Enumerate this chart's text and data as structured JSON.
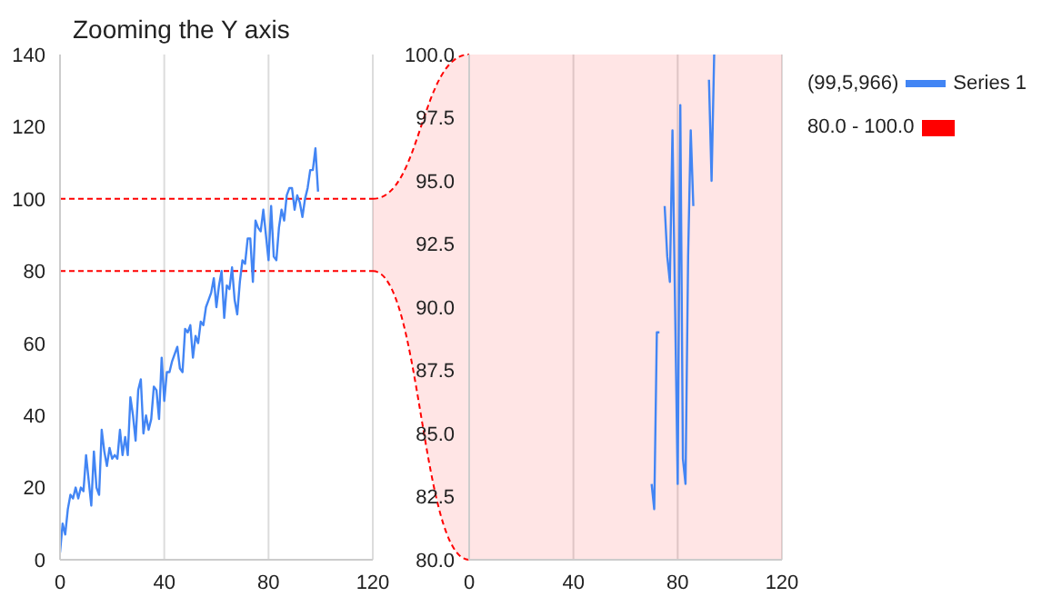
{
  "chart_data": [
    {
      "type": "line",
      "title": "Zooming the Y axis",
      "x": [
        0,
        1,
        2,
        3,
        4,
        5,
        6,
        7,
        8,
        9,
        10,
        11,
        12,
        13,
        14,
        15,
        16,
        17,
        18,
        19,
        20,
        21,
        22,
        23,
        24,
        25,
        26,
        27,
        28,
        29,
        30,
        31,
        32,
        33,
        34,
        35,
        36,
        37,
        38,
        39,
        40,
        41,
        42,
        43,
        44,
        45,
        46,
        47,
        48,
        49,
        50,
        51,
        52,
        53,
        54,
        55,
        56,
        57,
        58,
        59,
        60,
        61,
        62,
        63,
        64,
        65,
        66,
        67,
        68,
        69,
        70,
        71,
        72,
        73,
        74,
        75,
        76,
        77,
        78,
        79,
        80,
        81,
        82,
        83,
        84,
        85,
        86,
        87,
        88,
        89,
        90,
        91,
        92,
        93,
        94,
        95,
        96,
        97,
        98,
        99
      ],
      "series": [
        {
          "color": "#4285f4",
          "values": [
            2,
            10,
            7,
            14,
            18,
            17,
            20,
            17,
            20,
            19,
            29,
            22,
            15,
            30,
            20,
            18,
            36,
            30,
            26,
            31,
            28,
            29,
            28,
            36,
            29,
            34,
            29,
            45,
            40,
            33,
            47,
            50,
            35,
            40,
            36,
            39,
            48,
            47,
            39,
            56,
            44,
            52,
            52,
            55,
            57,
            59,
            53,
            52,
            64,
            63,
            65,
            56,
            62,
            60,
            66,
            65,
            70,
            72,
            74,
            78,
            70,
            76,
            80,
            67,
            76,
            75,
            81,
            72,
            68,
            77,
            83,
            82,
            89,
            89,
            77,
            94,
            92,
            91,
            97,
            90,
            83,
            98,
            84,
            83,
            92,
            97,
            94,
            101,
            103,
            103,
            97,
            101,
            99,
            95,
            100,
            103,
            108,
            108,
            114,
            102
          ]
        }
      ],
      "xlim": [
        0,
        120
      ],
      "xticks": [
        0,
        40,
        80,
        120
      ],
      "ylim": [
        0,
        140
      ],
      "yticks": [
        0,
        20,
        40,
        60,
        80,
        100,
        120,
        140
      ],
      "grid": true,
      "ref_lines": [
        {
          "axis": "y",
          "value": 80,
          "color": "#ff0000",
          "line_style": "dashed"
        },
        {
          "axis": "y",
          "value": 100,
          "color": "#ff0000",
          "line_style": "dashed"
        }
      ]
    },
    {
      "type": "line",
      "series": [
        {
          "name": "Series 1",
          "color": "#4285f4",
          "x": [
            70,
            71,
            72,
            73,
            74,
            75,
            76,
            77,
            78,
            79,
            80,
            81,
            82,
            83,
            84,
            85,
            86,
            87,
            92,
            93,
            94
          ],
          "values": [
            83,
            82,
            89,
            89,
            null,
            94,
            92,
            91,
            97,
            90,
            83,
            98,
            84,
            83,
            92,
            97,
            94,
            null,
            99,
            95,
            100
          ]
        }
      ],
      "xlim": [
        0,
        120
      ],
      "xticks": [
        0,
        40,
        80,
        120
      ],
      "ylim": [
        80,
        100
      ],
      "yticks": [
        {
          "value": 80,
          "label": "80.0"
        },
        {
          "value": 82.5,
          "label": "82.5"
        },
        {
          "value": 85,
          "label": "85.0"
        },
        {
          "value": 87.5,
          "label": "87.5"
        },
        {
          "value": 90,
          "label": "90.0"
        },
        {
          "value": 92.5,
          "label": "92.5"
        },
        {
          "value": 95,
          "label": "95.0"
        },
        {
          "value": 97.5,
          "label": "97.5"
        },
        {
          "value": 100,
          "label": "100.0"
        }
      ],
      "grid": true,
      "legend": "right",
      "annotations": [
        "(99,5,966)"
      ],
      "bands": [
        {
          "axis": "y",
          "from": 80,
          "to": 100,
          "label": "80.0 - 100.0",
          "color": "#ff0000"
        }
      ]
    }
  ]
}
